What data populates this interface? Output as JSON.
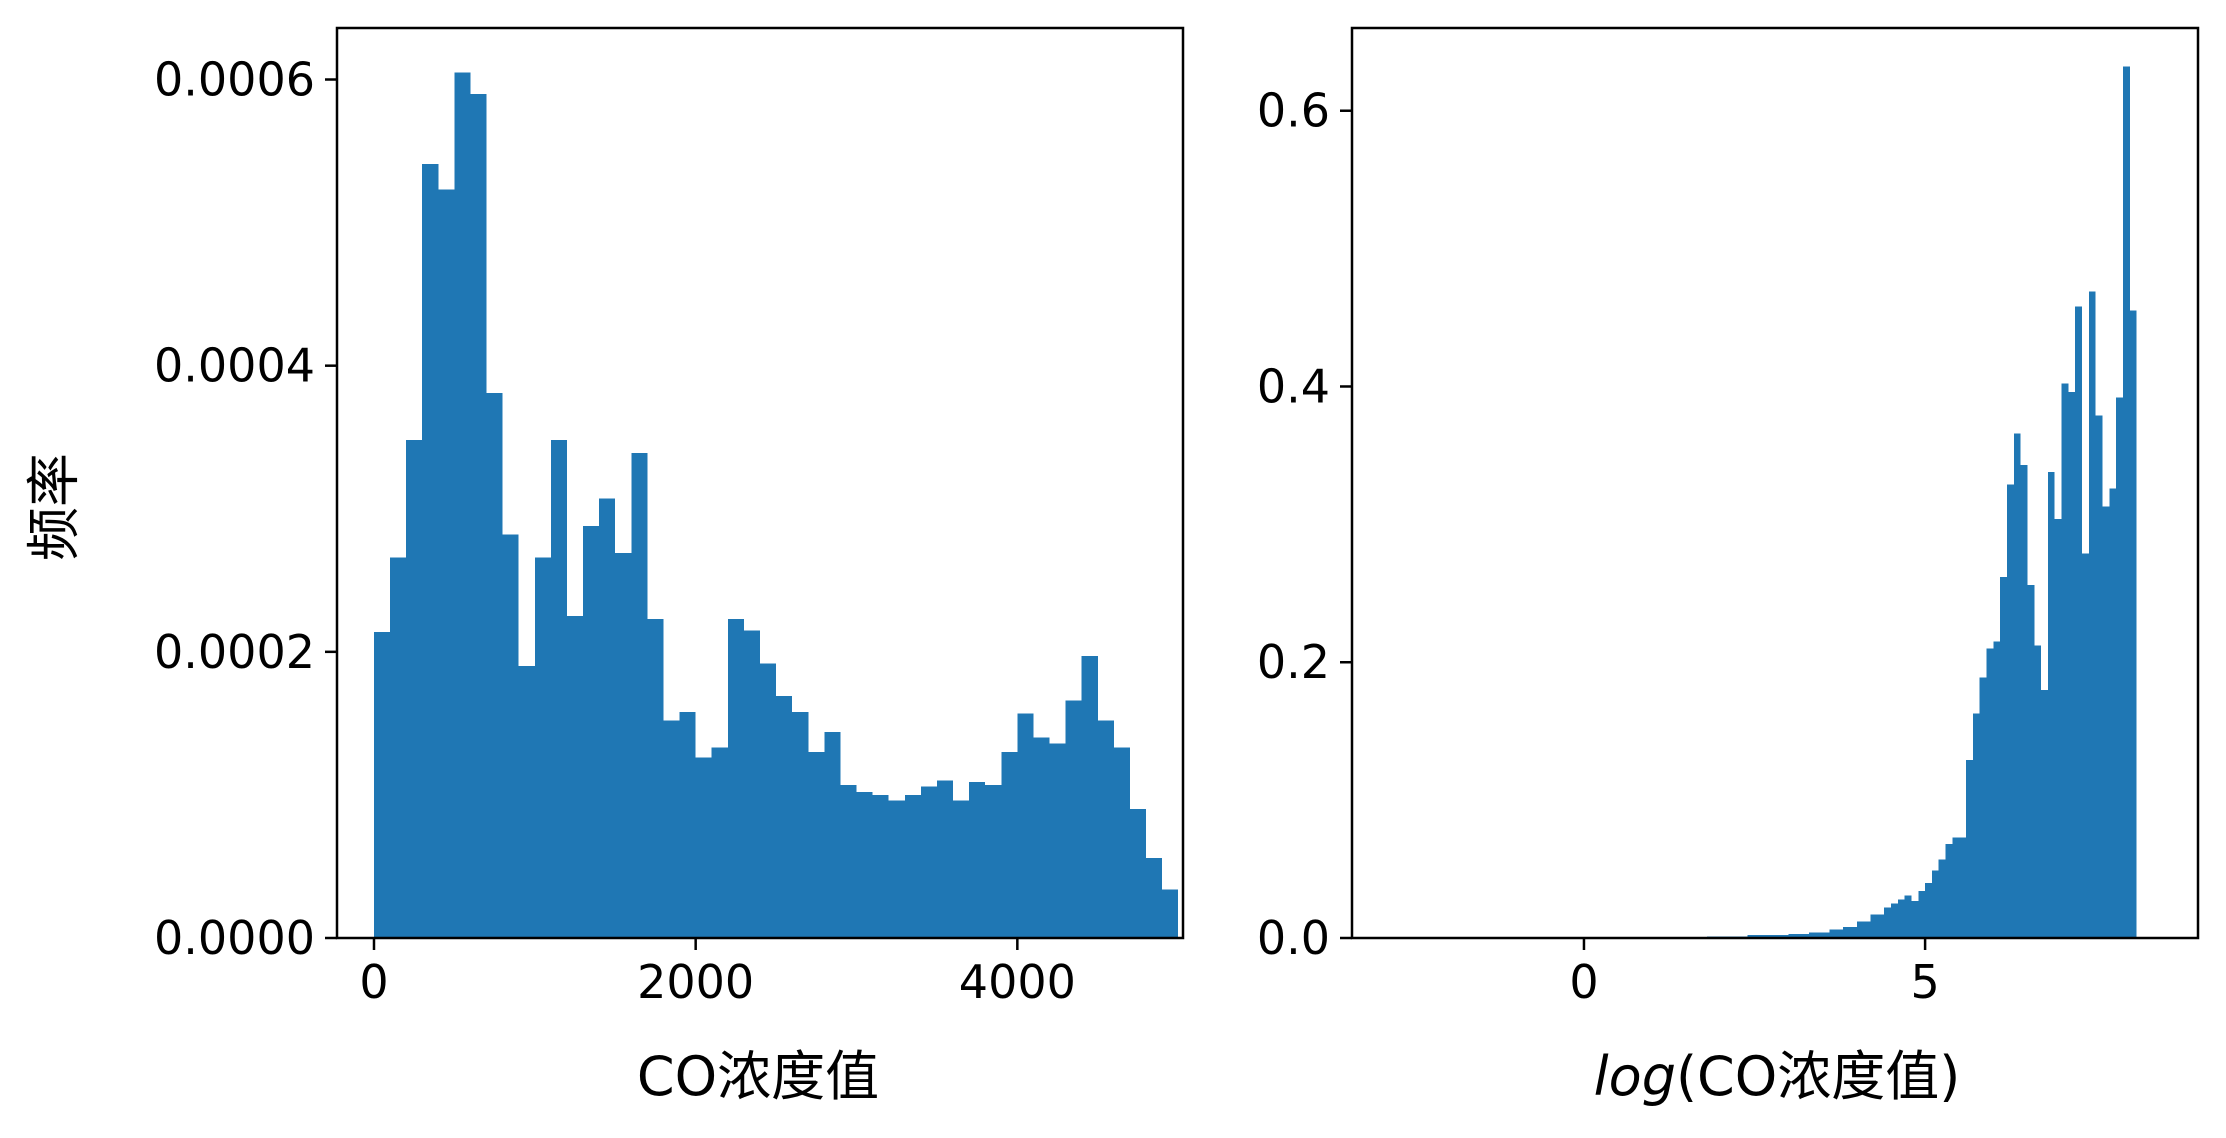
{
  "chart_data": [
    {
      "type": "bar",
      "subtype": "histogram",
      "xlabel": "CO浓度值",
      "ylabel": "频率",
      "xlim": [
        -230,
        5030
      ],
      "ylim": [
        0,
        0.000636
      ],
      "xticks": [
        0,
        2000,
        4000
      ],
      "xtick_labels": [
        "0",
        "2000",
        "4000"
      ],
      "yticks": [
        0,
        0.0002,
        0.0004,
        0.0006
      ],
      "ytick_labels": [
        "0.0000",
        "0.0002",
        "0.0004",
        "0.0006"
      ],
      "color": "#1f77b4",
      "bin_start": 0,
      "bin_width": 100,
      "values": [
        0.000214,
        0.000266,
        0.000348,
        0.000541,
        0.000523,
        0.000605,
        0.00059,
        0.000381,
        0.000282,
        0.00019,
        0.000266,
        0.000348,
        0.000225,
        0.000288,
        0.000307,
        0.000269,
        0.000339,
        0.000223,
        0.000152,
        0.000158,
        0.000126,
        0.000133,
        0.000223,
        0.000215,
        0.000192,
        0.000169,
        0.000158,
        0.00013,
        0.000144,
        0.000107,
        0.000102,
        0.0001,
        9.6e-05,
        0.0001,
        0.000106,
        0.00011,
        9.6e-05,
        0.000109,
        0.000107,
        0.00013,
        0.000157,
        0.00014,
        0.000136,
        0.000166,
        0.000197,
        0.000152,
        0.000133,
        9e-05,
        5.6e-05,
        3.4e-05
      ]
    },
    {
      "type": "bar",
      "subtype": "histogram",
      "xlabel_italic": "log",
      "xlabel_rest": "(CO浓度值)",
      "ylabel": "",
      "xlim": [
        -3.4,
        9.0
      ],
      "ylim": [
        0,
        0.66
      ],
      "xticks": [
        0,
        5
      ],
      "xtick_labels": [
        "0",
        "5"
      ],
      "yticks": [
        0,
        0.2,
        0.4,
        0.6
      ],
      "ytick_labels": [
        "0.0",
        "0.2",
        "0.4",
        "0.6"
      ],
      "color": "#1f77b4",
      "bin_start": 5.5,
      "bin_width": 0.1,
      "low_tail": [
        {
          "x": 1.8,
          "w": 0.6,
          "v": 0.001
        },
        {
          "x": 2.4,
          "w": 0.6,
          "v": 0.002
        },
        {
          "x": 3.0,
          "w": 0.3,
          "v": 0.003
        },
        {
          "x": 3.3,
          "w": 0.3,
          "v": 0.004
        },
        {
          "x": 3.6,
          "w": 0.2,
          "v": 0.006
        },
        {
          "x": 3.8,
          "w": 0.2,
          "v": 0.008
        },
        {
          "x": 4.0,
          "w": 0.2,
          "v": 0.012
        },
        {
          "x": 4.2,
          "w": 0.2,
          "v": 0.017
        },
        {
          "x": 4.4,
          "w": 0.1,
          "v": 0.022
        },
        {
          "x": 4.5,
          "w": 0.1,
          "v": 0.025
        },
        {
          "x": 4.6,
          "w": 0.1,
          "v": 0.028
        },
        {
          "x": 4.7,
          "w": 0.1,
          "v": 0.031
        },
        {
          "x": 4.8,
          "w": 0.1,
          "v": 0.027
        },
        {
          "x": 4.9,
          "w": 0.1,
          "v": 0.034
        },
        {
          "x": 5.0,
          "w": 0.1,
          "v": 0.04
        },
        {
          "x": 5.1,
          "w": 0.1,
          "v": 0.049
        },
        {
          "x": 5.2,
          "w": 0.1,
          "v": 0.057
        },
        {
          "x": 5.3,
          "w": 0.1,
          "v": 0.068
        },
        {
          "x": 5.4,
          "w": 0.1,
          "v": 0.073
        }
      ],
      "values": [
        0.073,
        0.129,
        0.163,
        0.189,
        0.21,
        0.215,
        0.262,
        0.329,
        0.366,
        0.343,
        0.256,
        0.212,
        0.18,
        0.338,
        0.304,
        0.402,
        0.396,
        0.458,
        0.279,
        0.469,
        0.379,
        0.313,
        0.326,
        0.392,
        0.632,
        0.455
      ]
    }
  ]
}
